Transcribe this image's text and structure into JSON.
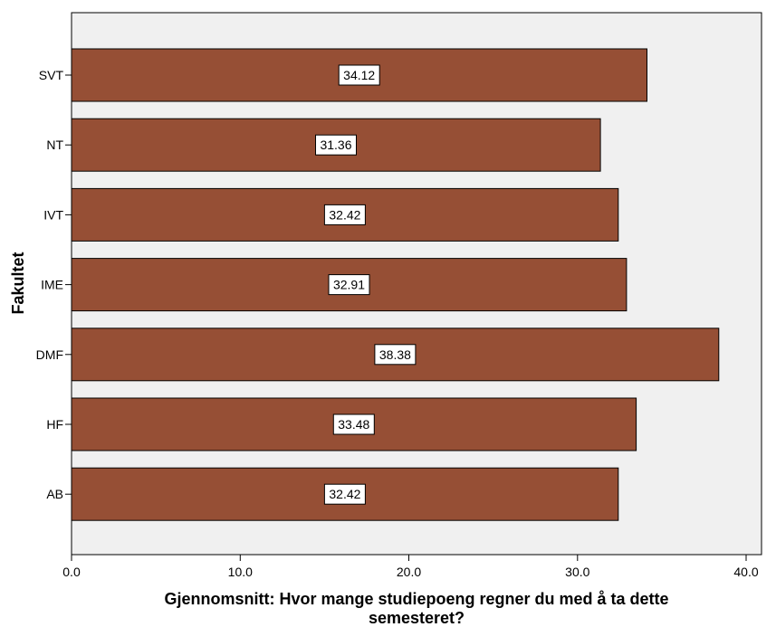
{
  "chart_data": {
    "type": "bar",
    "orientation": "horizontal",
    "categories": [
      "SVT",
      "NT",
      "IVT",
      "IME",
      "DMF",
      "HF",
      "AB"
    ],
    "values": [
      34.12,
      31.36,
      32.42,
      32.91,
      38.38,
      33.48,
      32.42
    ],
    "data_labels": [
      "34.12",
      "31.36",
      "32.42",
      "32.91",
      "38.38",
      "33.48",
      "32.42"
    ],
    "xlabel_lines": [
      "Gjennomsnitt: Hvor mange studiepoeng regner du med å ta dette",
      "semesteret?"
    ],
    "ylabel": "Fakultet",
    "xlim": [
      0,
      41.5
    ],
    "xticks": [
      0,
      10,
      20,
      30,
      40
    ],
    "xtick_labels": [
      "0.0",
      "10.0",
      "20.0",
      "30.0",
      "40.0"
    ],
    "grid": false,
    "legend": "none",
    "colors": {
      "bar_fill": "#964F35",
      "bar_stroke": "#000000",
      "plot_background": "#F0F0F0",
      "label_box_fill": "#FFFFFF"
    }
  }
}
